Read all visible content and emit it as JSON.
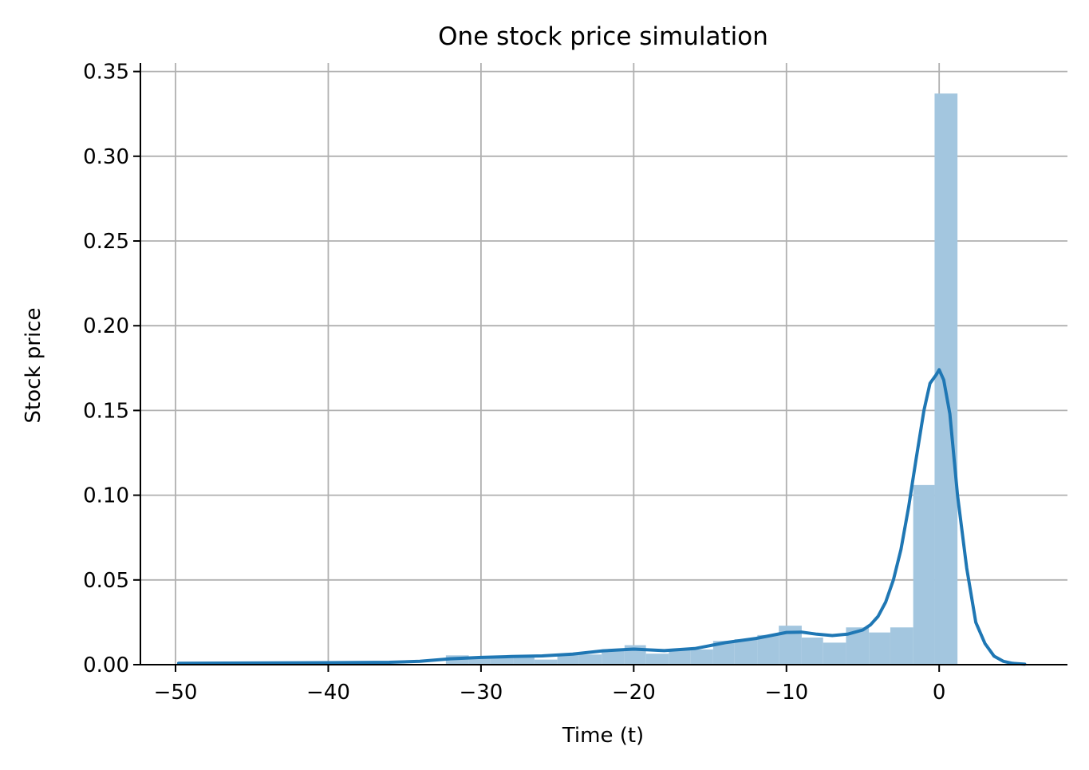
{
  "chart_data": {
    "type": "bar",
    "title": "One stock price simulation",
    "xlabel": "Time (t)",
    "ylabel": "Stock price",
    "xlim": [
      -52.3,
      8.4
    ],
    "ylim": [
      0,
      0.355
    ],
    "xticks": [
      -50,
      -40,
      -30,
      -20,
      -10,
      0
    ],
    "xtick_labels": [
      "−50",
      "−40",
      "−30",
      "−20",
      "−10",
      "0"
    ],
    "yticks": [
      0,
      0.05,
      0.1,
      0.15,
      0.2,
      0.25,
      0.3,
      0.35
    ],
    "ytick_labels": [
      "0.00",
      "0.05",
      "0.10",
      "0.15",
      "0.20",
      "0.25",
      "0.30",
      "0.35"
    ],
    "grid": true,
    "histogram": {
      "color": "#a3c6df",
      "bins": [
        {
          "x0": -32.3,
          "x1": -30.8,
          "value": 0.0055
        },
        {
          "x0": -30.8,
          "x1": -29.4,
          "value": 0.0045
        },
        {
          "x0": -29.4,
          "x1": -27.9,
          "value": 0.0045
        },
        {
          "x0": -27.9,
          "x1": -26.5,
          "value": 0.0045
        },
        {
          "x0": -26.5,
          "x1": -25.0,
          "value": 0.003
        },
        {
          "x0": -25.0,
          "x1": -23.6,
          "value": 0.006
        },
        {
          "x0": -23.6,
          "x1": -22.1,
          "value": 0.006
        },
        {
          "x0": -22.1,
          "x1": -20.6,
          "value": 0.009
        },
        {
          "x0": -20.6,
          "x1": -19.2,
          "value": 0.0115
        },
        {
          "x0": -19.2,
          "x1": -17.7,
          "value": 0.0065
        },
        {
          "x0": -17.7,
          "x1": -16.3,
          "value": 0.0085
        },
        {
          "x0": -16.3,
          "x1": -14.8,
          "value": 0.009
        },
        {
          "x0": -14.8,
          "x1": -13.4,
          "value": 0.014
        },
        {
          "x0": -13.4,
          "x1": -11.9,
          "value": 0.015
        },
        {
          "x0": -11.9,
          "x1": -10.5,
          "value": 0.0175
        },
        {
          "x0": -10.5,
          "x1": -9.0,
          "value": 0.023
        },
        {
          "x0": -9.0,
          "x1": -7.6,
          "value": 0.016
        },
        {
          "x0": -7.6,
          "x1": -6.1,
          "value": 0.013
        },
        {
          "x0": -6.1,
          "x1": -4.6,
          "value": 0.022
        },
        {
          "x0": -4.6,
          "x1": -3.2,
          "value": 0.019
        },
        {
          "x0": -3.2,
          "x1": -1.7,
          "value": 0.022
        },
        {
          "x0": -1.7,
          "x1": -0.3,
          "value": 0.106
        },
        {
          "x0": -0.3,
          "x1": 1.2,
          "value": 0.337
        }
      ]
    },
    "series": [
      {
        "type": "line",
        "color": "#1f77b4",
        "x": [
          -49.8,
          -45,
          -40,
          -36,
          -34,
          -32,
          -30,
          -28,
          -26,
          -24,
          -22,
          -20,
          -18,
          -16,
          -14,
          -12,
          -10,
          -9,
          -8,
          -7,
          -6,
          -5,
          -4.5,
          -4,
          -3.5,
          -3,
          -2.5,
          -2,
          -1.5,
          -1,
          -0.6,
          -0.2,
          0,
          0.3,
          0.7,
          1.2,
          1.8,
          2.4,
          3,
          3.6,
          4.2,
          4.8,
          5.6
        ],
        "y": [
          0.0008,
          0.001,
          0.0012,
          0.0014,
          0.002,
          0.0035,
          0.0043,
          0.0048,
          0.0052,
          0.0062,
          0.0082,
          0.0092,
          0.0083,
          0.0095,
          0.013,
          0.0155,
          0.019,
          0.0192,
          0.018,
          0.0172,
          0.018,
          0.0205,
          0.0235,
          0.0285,
          0.037,
          0.05,
          0.068,
          0.093,
          0.122,
          0.15,
          0.166,
          0.171,
          0.174,
          0.168,
          0.148,
          0.1,
          0.057,
          0.025,
          0.0125,
          0.005,
          0.002,
          0.0008,
          0.0003
        ]
      }
    ]
  }
}
